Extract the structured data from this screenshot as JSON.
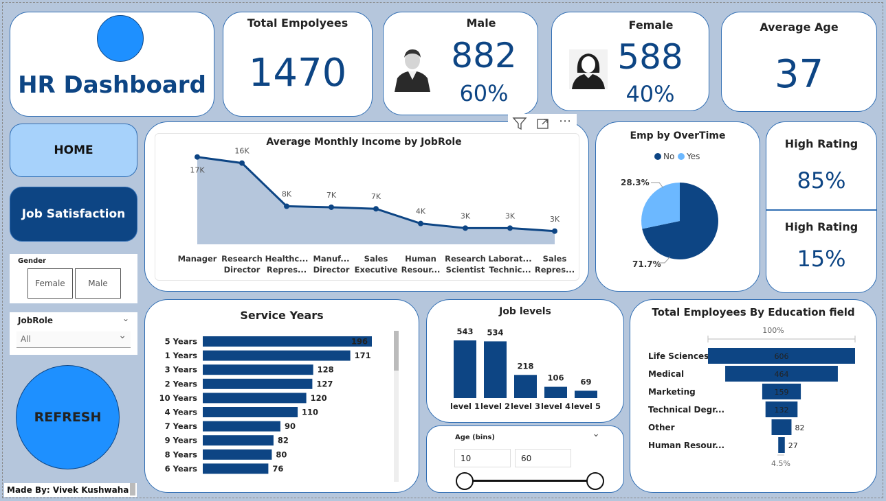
{
  "header": {
    "title": "HR Dashboard"
  },
  "kpis": {
    "total_employees": {
      "label": "Total Empolyees",
      "value": "1470"
    },
    "male": {
      "label": "Male",
      "value": "882",
      "percent": "60%"
    },
    "female": {
      "label": "Female",
      "value": "588",
      "percent": "40%"
    },
    "average_age": {
      "label": "Average Age",
      "value": "37"
    }
  },
  "nav": {
    "home_label": "HOME",
    "job_satisfaction_label": "Job Satisfaction",
    "refresh_label": "REFRESH"
  },
  "gender_slicer": {
    "title": "Gender",
    "options": [
      "Female",
      "Male"
    ]
  },
  "jobrole_slicer": {
    "title": "JobRole",
    "selected": "All"
  },
  "age_slicer": {
    "title": "Age (bins)",
    "min": "10",
    "max": "60"
  },
  "ratings": {
    "high_label_1": "High Rating",
    "high_value_1": "85%",
    "high_label_2": "High Rating",
    "high_value_2": "15%"
  },
  "credit": "Made By: Vivek Kushwaha",
  "colors": {
    "primary": "#0d4584",
    "light_blue": "#a7d2fb",
    "accent_blue": "#1e90ff",
    "pie_yes": "#6cb8ff",
    "area_fill": "#b5c6dc"
  },
  "chart_data": [
    {
      "type": "area",
      "title": "Average Monthly Income by JobRole",
      "categories": [
        "Manager",
        "Research Director",
        "Healthc... Repres...",
        "Manuf... Director",
        "Sales Executive",
        "Human Resour...",
        "Research Scientist",
        "Laborat... Technic...",
        "Sales Repres..."
      ],
      "category_lines": [
        [
          "Manager"
        ],
        [
          "Research",
          "Director"
        ],
        [
          "Healthc...",
          "Repres..."
        ],
        [
          "Manuf...",
          "Director"
        ],
        [
          "Sales",
          "Executive"
        ],
        [
          "Human",
          "Resour..."
        ],
        [
          "Research",
          "Scientist"
        ],
        [
          "Laborat...",
          "Technic..."
        ],
        [
          "Sales",
          "Repres..."
        ]
      ],
      "values": [
        17.2,
        16.0,
        7.5,
        7.3,
        7.0,
        4.1,
        3.2,
        3.2,
        2.6
      ],
      "data_labels": [
        "17K",
        "16K",
        "8K",
        "7K",
        "7K",
        "4K",
        "3K",
        "3K",
        "3K"
      ],
      "ylim": [
        0,
        20
      ]
    },
    {
      "type": "pie",
      "title": "Emp by OverTime",
      "legend": [
        {
          "name": "No",
          "color": "#0d4584"
        },
        {
          "name": "Yes",
          "color": "#6cb8ff"
        }
      ],
      "slices": [
        {
          "name": "No",
          "value": 71.7,
          "label": "71.7%",
          "color": "#0d4584"
        },
        {
          "name": "Yes",
          "value": 28.3,
          "label": "28.3%",
          "color": "#6cb8ff"
        }
      ]
    },
    {
      "type": "bar",
      "orientation": "horizontal",
      "title": "Service Years",
      "categories": [
        "5 Years",
        "1 Years",
        "3 Years",
        "2 Years",
        "10 Years",
        "4 Years",
        "7 Years",
        "9 Years",
        "8 Years",
        "6 Years"
      ],
      "values": [
        196,
        171,
        128,
        127,
        120,
        110,
        90,
        82,
        80,
        76
      ],
      "xlim": [
        0,
        200
      ]
    },
    {
      "type": "bar",
      "title": "Job levels",
      "categories": [
        "level 1",
        "level 2",
        "level 3",
        "level 4",
        "level 5"
      ],
      "values": [
        543,
        534,
        218,
        106,
        69
      ],
      "ylim": [
        0,
        560
      ]
    },
    {
      "type": "bar",
      "orientation": "funnel",
      "title": "Total Employees By Education field",
      "top_label": "100%",
      "bottom_label": "4.5%",
      "categories": [
        "Life Sciences",
        "Medical",
        "Marketing",
        "Technical Degr...",
        "Other",
        "Human Resour..."
      ],
      "values": [
        606,
        464,
        159,
        132,
        82,
        27
      ]
    }
  ]
}
